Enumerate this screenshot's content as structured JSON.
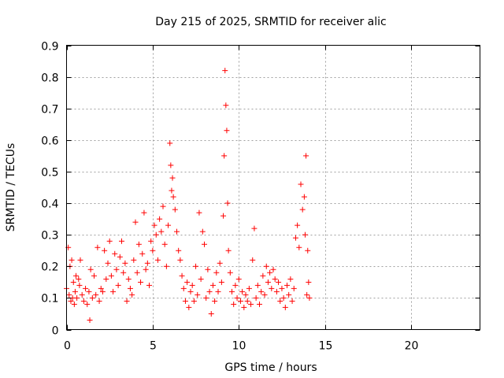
{
  "chart_data": {
    "type": "scatter",
    "title": "Day 215 of 2025, SRMTID for receiver alic",
    "xlabel": "GPS time / hours",
    "ylabel": "SRMTID / TECUs",
    "xlim": [
      0,
      24
    ],
    "ylim": [
      0,
      0.9
    ],
    "x_ticks": [
      0,
      5,
      10,
      15,
      20
    ],
    "x_tick_labels": [
      "0",
      "5",
      "10",
      "15",
      "20"
    ],
    "y_ticks": [
      0,
      0.1,
      0.2,
      0.3,
      0.4,
      0.5,
      0.6,
      0.7,
      0.8,
      0.9
    ],
    "y_tick_labels": [
      "0",
      "0.1",
      "0.2",
      "0.3",
      "0.4",
      "0.5",
      "0.6",
      "0.7",
      "0.8",
      "0.9"
    ],
    "grid": true,
    "marker": "+",
    "color": "#ff0000",
    "series": [
      {
        "name": "SRMTID",
        "x": [
          0.0,
          0.1,
          0.15,
          0.2,
          0.25,
          0.3,
          0.35,
          0.4,
          0.45,
          0.5,
          0.55,
          0.6,
          0.7,
          0.75,
          0.8,
          0.9,
          1.0,
          1.1,
          1.2,
          1.3,
          1.35,
          1.4,
          1.5,
          1.6,
          1.7,
          1.8,
          1.9,
          2.0,
          2.1,
          2.2,
          2.3,
          2.4,
          2.5,
          2.6,
          2.7,
          2.8,
          2.9,
          3.0,
          3.1,
          3.2,
          3.3,
          3.4,
          3.5,
          3.6,
          3.7,
          3.8,
          3.9,
          4.0,
          4.1,
          4.2,
          4.3,
          4.4,
          4.5,
          4.6,
          4.7,
          4.8,
          4.9,
          5.0,
          5.1,
          5.2,
          5.3,
          5.4,
          5.5,
          5.6,
          5.7,
          5.8,
          5.9,
          6.0,
          6.05,
          6.1,
          6.15,
          6.2,
          6.3,
          6.4,
          6.5,
          6.6,
          6.7,
          6.8,
          6.9,
          7.0,
          7.1,
          7.2,
          7.3,
          7.4,
          7.5,
          7.6,
          7.7,
          7.8,
          7.9,
          8.0,
          8.1,
          8.2,
          8.3,
          8.4,
          8.5,
          8.6,
          8.7,
          8.8,
          8.9,
          9.0,
          9.1,
          9.15,
          9.2,
          9.25,
          9.3,
          9.35,
          9.4,
          9.5,
          9.6,
          9.7,
          9.8,
          9.9,
          10.0,
          10.1,
          10.2,
          10.3,
          10.4,
          10.5,
          10.6,
          10.7,
          10.8,
          10.9,
          11.0,
          11.1,
          11.2,
          11.3,
          11.4,
          11.5,
          11.6,
          11.7,
          11.8,
          11.9,
          12.0,
          12.1,
          12.2,
          12.3,
          12.4,
          12.5,
          12.6,
          12.7,
          12.8,
          12.9,
          13.0,
          13.1,
          13.2,
          13.3,
          13.4,
          13.5,
          13.6,
          13.7,
          13.8,
          13.85,
          13.9,
          13.95,
          14.0,
          14.05,
          14.1
        ],
        "y": [
          0.13,
          0.26,
          0.11,
          0.2,
          0.09,
          0.22,
          0.1,
          0.15,
          0.08,
          0.12,
          0.17,
          0.1,
          0.16,
          0.14,
          0.22,
          0.11,
          0.09,
          0.13,
          0.08,
          0.12,
          0.03,
          0.19,
          0.1,
          0.17,
          0.11,
          0.26,
          0.09,
          0.13,
          0.12,
          0.25,
          0.16,
          0.21,
          0.28,
          0.17,
          0.12,
          0.24,
          0.19,
          0.14,
          0.23,
          0.28,
          0.18,
          0.21,
          0.09,
          0.16,
          0.13,
          0.11,
          0.22,
          0.34,
          0.18,
          0.27,
          0.15,
          0.24,
          0.37,
          0.19,
          0.21,
          0.14,
          0.28,
          0.25,
          0.33,
          0.3,
          0.22,
          0.35,
          0.31,
          0.39,
          0.27,
          0.2,
          0.33,
          0.59,
          0.52,
          0.44,
          0.48,
          0.42,
          0.38,
          0.31,
          0.25,
          0.22,
          0.17,
          0.13,
          0.09,
          0.15,
          0.07,
          0.12,
          0.14,
          0.09,
          0.2,
          0.11,
          0.37,
          0.16,
          0.31,
          0.27,
          0.1,
          0.19,
          0.12,
          0.05,
          0.14,
          0.09,
          0.18,
          0.12,
          0.21,
          0.15,
          0.36,
          0.55,
          0.82,
          0.71,
          0.63,
          0.4,
          0.25,
          0.18,
          0.12,
          0.08,
          0.14,
          0.1,
          0.16,
          0.09,
          0.12,
          0.07,
          0.11,
          0.09,
          0.13,
          0.08,
          0.22,
          0.32,
          0.1,
          0.14,
          0.08,
          0.12,
          0.17,
          0.11,
          0.2,
          0.15,
          0.18,
          0.13,
          0.19,
          0.16,
          0.12,
          0.15,
          0.09,
          0.13,
          0.1,
          0.07,
          0.14,
          0.11,
          0.16,
          0.09,
          0.13,
          0.29,
          0.33,
          0.26,
          0.46,
          0.38,
          0.42,
          0.3,
          0.55,
          0.11,
          0.25,
          0.15,
          0.1
        ]
      }
    ]
  }
}
